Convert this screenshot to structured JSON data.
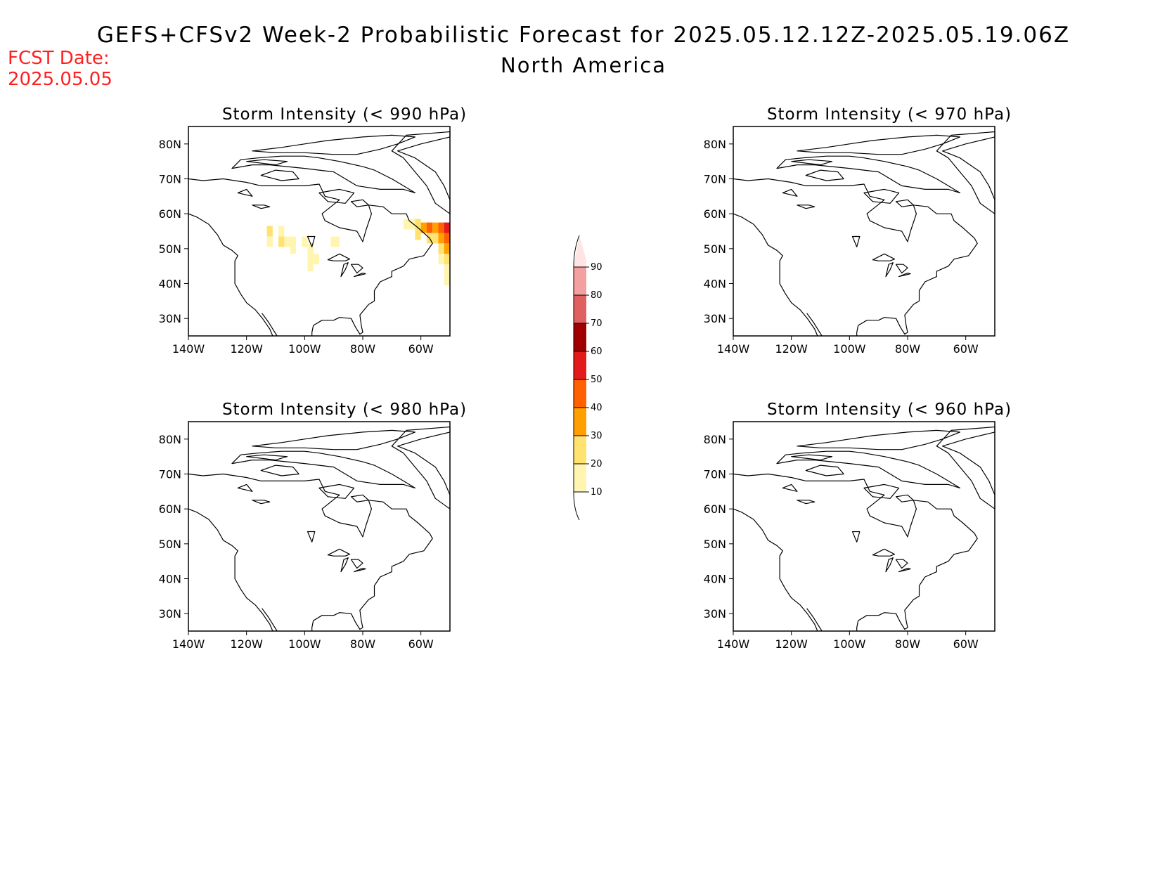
{
  "title": "GEFS+CFSv2 Week-2 Probabilistic Forecast for 2025.05.12.12Z-2025.05.19.06Z",
  "subtitle": "North America",
  "fcst_date_label": "FCST Date:",
  "fcst_date": "2025.05.05",
  "colors": {
    "fcst_date": "#ff2020",
    "scale": [
      "#fff5b0",
      "#ffe270",
      "#ffa000",
      "#ff6000",
      "#e31a1c",
      "#a00000",
      "#e06060",
      "#f4a0a0",
      "#ffe4e4"
    ]
  },
  "colorbar": {
    "levels": [
      "10",
      "20",
      "30",
      "40",
      "50",
      "60",
      "70",
      "80",
      "90"
    ]
  },
  "axes": {
    "lat_labels": [
      "80N",
      "70N",
      "60N",
      "50N",
      "40N",
      "30N"
    ],
    "lon_labels": [
      "140W",
      "120W",
      "100W",
      "80W",
      "60W"
    ]
  },
  "panels": [
    {
      "title": "Storm Intensity (< 990 hPa)",
      "has_shading": true
    },
    {
      "title": "Storm Intensity (< 970 hPa)",
      "has_shading": false
    },
    {
      "title": "Storm Intensity (< 980 hPa)",
      "has_shading": false
    },
    {
      "title": "Storm Intensity (< 960 hPa)",
      "has_shading": false
    }
  ]
}
